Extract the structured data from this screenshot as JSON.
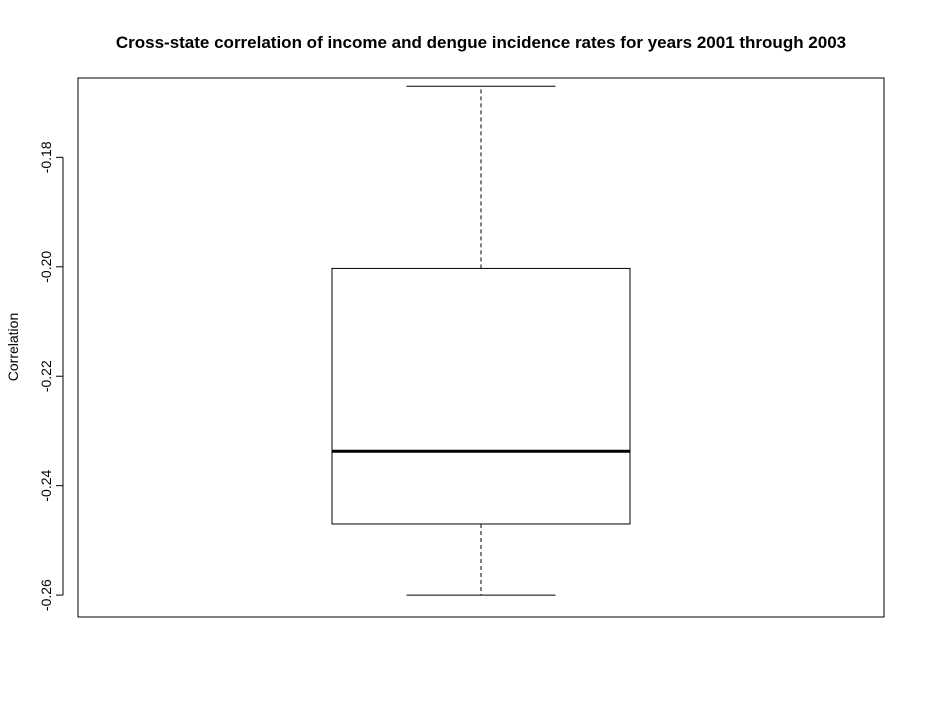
{
  "chart_data": {
    "type": "box",
    "title": "Cross-state correlation of income and dengue incidence rates for years 2001 through 2003",
    "xlabel": "",
    "ylabel": "Correlation",
    "ylim": [
      -0.264,
      -0.1655
    ],
    "yticks": [
      -0.26,
      -0.24,
      -0.22,
      -0.2,
      -0.18
    ],
    "ytick_labels": [
      "-0.26",
      "-0.24",
      "-0.22",
      "-0.20",
      "-0.18"
    ],
    "box": {
      "min": -0.26,
      "q1": -0.247,
      "median": -0.2337,
      "q3": -0.2003,
      "max": -0.167
    },
    "grid": false,
    "legend": "none"
  }
}
